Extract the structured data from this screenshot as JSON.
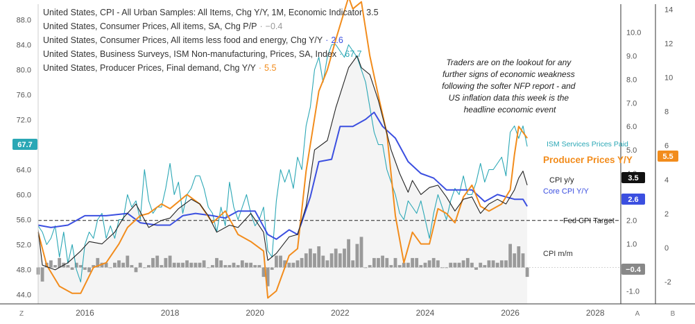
{
  "chart_data": {
    "type": "line",
    "x_ticks": [
      "2016",
      "2018",
      "2020",
      "2022",
      "2024",
      "2026",
      "2028"
    ],
    "axes": {
      "left": {
        "ticks": [
          "44.0",
          "48.0",
          "52.0",
          "56.0",
          "60.0",
          "64.0",
          "68.0",
          "72.0",
          "76.0",
          "80.0",
          "84.0",
          "88.0"
        ],
        "range": [
          42.5,
          90.5
        ]
      },
      "a": {
        "ticks": [
          "-1.0",
          "0.0",
          "1.0",
          "2.0",
          "3.0",
          "4.0",
          "5.0",
          "6.0",
          "7.0",
          "8.0",
          "9.0",
          "10.0"
        ],
        "range": [
          -1.55,
          11.2
        ]
      },
      "b": {
        "ticks": [
          "-2",
          "0",
          "2",
          "4",
          "6",
          "8",
          "10",
          "12",
          "14"
        ],
        "range": [
          -3.3,
          14.3
        ]
      }
    },
    "legend": [
      {
        "id": "cpi_yy",
        "label": "United States, CPI - All Urban Samples: All Items, Chg Y/Y, 1M, Economic Indicator",
        "value": "3.5",
        "value_color": "#333333"
      },
      {
        "id": "cpi_mm",
        "label": "United States, Consumer Prices, All items, SA, Chg P/P",
        "value": "−0.4",
        "value_color": "#999999"
      },
      {
        "id": "core",
        "label": "United States, Consumer Prices, All items less food and energy, Chg Y/Y",
        "value": "2.6",
        "value_color": "#3b4fe0"
      },
      {
        "id": "ism",
        "label": "United States, Business Surveys, ISM Non-manufacturing, Prices, SA, Index",
        "value": "67.7",
        "value_color": "#2aa7b5"
      },
      {
        "id": "ppi",
        "label": "United States, Producer Prices, Final demand, Chg Y/Y",
        "value": "5.5",
        "value_color": "#f28c1c"
      }
    ],
    "annotation": "Traders are on the lookout for any further signs of economic weakness following the softer NFP report - and US inflation data this week is the headline economic event",
    "reference_line": {
      "label": "Fed CPI Target",
      "value": 2.0,
      "axis": "a"
    },
    "series_labels": {
      "ism": "ISM Services Prices Paid",
      "ppi": "Producer Prices Y/Y",
      "cpi_yy": "CPI y/y",
      "core": "Core CPI Y/Y",
      "cpi_mm": "CPI m/m"
    },
    "badges": {
      "left": "67.7",
      "ppi": "5.5",
      "cpi_yy": "3.5",
      "core": "2.6",
      "cpi_mm": "−0.4"
    },
    "corner_labels": {
      "left": "Z",
      "a": "A",
      "b": "B"
    },
    "colors": {
      "cpi_yy": "#222222",
      "cpi_mm": "#9a9a9a",
      "core": "#3b4fe0",
      "ism": "#2aa7b5",
      "ppi": "#f28c1c",
      "badge_left": "#2aa7b5",
      "badge_cpi": "#111111",
      "badge_mm": "#888888"
    },
    "series": [
      {
        "id": "cpi_yy",
        "axis": "a",
        "x": [
          2014.9,
          2015.0,
          2015.3,
          2015.6,
          2015.9,
          2016.1,
          2016.4,
          2016.7,
          2016.9,
          2017.2,
          2017.5,
          2017.8,
          2018.0,
          2018.2,
          2018.5,
          2018.7,
          2018.9,
          2019.1,
          2019.4,
          2019.6,
          2019.9,
          2020.2,
          2020.3,
          2020.5,
          2020.8,
          2021.0,
          2021.2,
          2021.4,
          2021.7,
          2021.9,
          2022.2,
          2022.4,
          2022.5,
          2022.7,
          2022.9,
          2023.2,
          2023.4,
          2023.6,
          2023.7,
          2023.9,
          2024.1,
          2024.3,
          2024.5,
          2024.7,
          2024.9,
          2025.1,
          2025.3,
          2025.5,
          2025.7,
          2025.9,
          2026.1,
          2026.2,
          2026.3,
          2026.4
        ],
        "values": [
          1.6,
          0.1,
          -0.1,
          0.2,
          0.7,
          1.1,
          1.0,
          1.5,
          2.1,
          2.7,
          1.7,
          2.0,
          2.1,
          2.5,
          2.9,
          2.7,
          2.2,
          1.5,
          1.8,
          1.7,
          2.3,
          1.5,
          0.3,
          0.6,
          1.3,
          1.4,
          2.6,
          5.0,
          5.4,
          6.8,
          8.5,
          9.0,
          8.5,
          8.2,
          7.1,
          5.0,
          4.0,
          3.2,
          3.7,
          3.1,
          3.4,
          3.5,
          3.0,
          2.4,
          2.9,
          3.0,
          2.3,
          2.7,
          2.9,
          2.7,
          3.3,
          3.8,
          4.1,
          3.5
        ]
      },
      {
        "id": "core",
        "axis": "a",
        "x": [
          2014.9,
          2015.2,
          2015.6,
          2016.0,
          2016.5,
          2017.0,
          2017.3,
          2017.7,
          2018.0,
          2018.3,
          2018.6,
          2019.0,
          2019.3,
          2019.6,
          2020.0,
          2020.3,
          2020.5,
          2020.8,
          2021.0,
          2021.3,
          2021.5,
          2021.8,
          2022.0,
          2022.3,
          2022.6,
          2022.8,
          2023.0,
          2023.3,
          2023.6,
          2023.9,
          2024.2,
          2024.5,
          2024.8,
          2025.1,
          2025.4,
          2025.7,
          2025.9,
          2026.1,
          2026.3,
          2026.4
        ],
        "values": [
          1.8,
          1.7,
          1.8,
          2.2,
          2.2,
          2.3,
          1.9,
          1.8,
          1.8,
          2.2,
          2.3,
          2.2,
          2.1,
          2.4,
          2.4,
          1.4,
          1.2,
          1.6,
          1.4,
          3.0,
          4.5,
          4.6,
          6.0,
          6.0,
          6.3,
          6.6,
          6.0,
          5.5,
          4.5,
          4.0,
          3.8,
          3.3,
          3.3,
          3.3,
          2.8,
          3.1,
          3.0,
          2.9,
          2.9,
          2.6
        ]
      },
      {
        "id": "ppi",
        "axis": "a",
        "x": [
          2014.9,
          2015.1,
          2015.4,
          2015.7,
          2015.9,
          2016.2,
          2016.5,
          2016.8,
          2017.0,
          2017.3,
          2017.5,
          2017.8,
          2018.0,
          2018.4,
          2018.7,
          2019.0,
          2019.3,
          2019.6,
          2019.9,
          2020.2,
          2020.3,
          2020.5,
          2020.8,
          2021.0,
          2021.2,
          2021.5,
          2021.7,
          2021.9,
          2022.2,
          2022.3,
          2022.5,
          2022.7,
          2022.9,
          2023.1,
          2023.3,
          2023.5,
          2023.7,
          2023.9,
          2024.1,
          2024.3,
          2024.5,
          2024.7,
          2024.9,
          2025.1,
          2025.3,
          2025.5,
          2025.8,
          2026.0,
          2026.1,
          2026.2,
          2026.4
        ],
        "values": [
          1.5,
          0.1,
          -0.8,
          -1.1,
          -1.1,
          0.0,
          0.2,
          1.0,
          1.7,
          2.2,
          2.3,
          2.7,
          2.5,
          3.1,
          2.7,
          1.9,
          2.4,
          1.4,
          1.1,
          0.7,
          -1.3,
          -1.0,
          0.5,
          0.8,
          4.1,
          7.5,
          8.4,
          9.7,
          11.5,
          11.0,
          11.3,
          9.0,
          7.3,
          5.7,
          2.2,
          0.2,
          1.5,
          1.0,
          1.0,
          2.5,
          2.3,
          1.9,
          3.0,
          3.5,
          2.6,
          2.4,
          2.7,
          3.3,
          4.8,
          6.0,
          5.5
        ]
      },
      {
        "id": "ism",
        "axis": "left",
        "x": [
          2014.9,
          2015.0,
          2015.1,
          2015.2,
          2015.3,
          2015.4,
          2015.5,
          2015.6,
          2015.7,
          2015.8,
          2015.9,
          2016.0,
          2016.1,
          2016.2,
          2016.3,
          2016.4,
          2016.5,
          2016.6,
          2016.7,
          2016.8,
          2016.9,
          2017.0,
          2017.1,
          2017.2,
          2017.3,
          2017.4,
          2017.5,
          2017.6,
          2017.7,
          2017.8,
          2017.9,
          2018.0,
          2018.1,
          2018.2,
          2018.3,
          2018.4,
          2018.5,
          2018.6,
          2018.7,
          2018.8,
          2018.9,
          2019.0,
          2019.1,
          2019.2,
          2019.3,
          2019.4,
          2019.5,
          2019.6,
          2019.7,
          2019.8,
          2019.9,
          2020.0,
          2020.1,
          2020.2,
          2020.3,
          2020.4,
          2020.5,
          2020.6,
          2020.7,
          2020.8,
          2020.9,
          2021.0,
          2021.1,
          2021.2,
          2021.3,
          2021.4,
          2021.5,
          2021.6,
          2021.7,
          2021.8,
          2021.9,
          2022.0,
          2022.1,
          2022.2,
          2022.3,
          2022.4,
          2022.5,
          2022.6,
          2022.7,
          2022.8,
          2022.9,
          2023.0,
          2023.1,
          2023.2,
          2023.3,
          2023.4,
          2023.5,
          2023.6,
          2023.7,
          2023.8,
          2023.9,
          2024.0,
          2024.1,
          2024.2,
          2024.3,
          2024.4,
          2024.5,
          2024.6,
          2024.7,
          2024.8,
          2024.9,
          2025.0,
          2025.1,
          2025.2,
          2025.3,
          2025.4,
          2025.5,
          2025.6,
          2025.7,
          2025.8,
          2025.9,
          2026.0,
          2026.1,
          2026.2,
          2026.3,
          2026.4
        ],
        "values": [
          55,
          54,
          52,
          53,
          55,
          50,
          54,
          49,
          52,
          48,
          46,
          52,
          54,
          53,
          56,
          57,
          53,
          55,
          53,
          56,
          56,
          60,
          58,
          59,
          56,
          64,
          59,
          57,
          58,
          58,
          61,
          65,
          60,
          62,
          57,
          60,
          61,
          63,
          63,
          61,
          58,
          57,
          54,
          58,
          55,
          62,
          58,
          56,
          58,
          60,
          57,
          55,
          56,
          58,
          51,
          50,
          59,
          64,
          62,
          64,
          61,
          66,
          64,
          71,
          74,
          80,
          82,
          78,
          82,
          84,
          84,
          83,
          82,
          84,
          83,
          82,
          80,
          78,
          74,
          70,
          68,
          68,
          64,
          62,
          60,
          57,
          56,
          59,
          58,
          57,
          59,
          56,
          53,
          57,
          60,
          58,
          56,
          59,
          61,
          60,
          63,
          60,
          60,
          62,
          65,
          62,
          64,
          64,
          65,
          66,
          63,
          70,
          71,
          69,
          71,
          67.7
        ]
      },
      {
        "id": "cpi_mm",
        "type": "bar",
        "axis": "a",
        "x": [
          2014.9,
          2015.0,
          2015.1,
          2015.2,
          2015.3,
          2015.4,
          2015.5,
          2015.6,
          2015.7,
          2015.8,
          2015.9,
          2016.0,
          2016.1,
          2016.2,
          2016.3,
          2016.4,
          2016.5,
          2016.6,
          2016.7,
          2016.8,
          2016.9,
          2017.0,
          2017.1,
          2017.2,
          2017.3,
          2017.4,
          2017.5,
          2017.6,
          2017.7,
          2017.8,
          2017.9,
          2018.0,
          2018.1,
          2018.2,
          2018.3,
          2018.4,
          2018.5,
          2018.6,
          2018.7,
          2018.8,
          2018.9,
          2019.0,
          2019.1,
          2019.2,
          2019.3,
          2019.4,
          2019.5,
          2019.6,
          2019.7,
          2019.8,
          2019.9,
          2020.0,
          2020.1,
          2020.2,
          2020.3,
          2020.4,
          2020.5,
          2020.6,
          2020.7,
          2020.8,
          2020.9,
          2021.0,
          2021.1,
          2021.2,
          2021.3,
          2021.4,
          2021.5,
          2021.6,
          2021.7,
          2021.8,
          2021.9,
          2022.0,
          2022.1,
          2022.2,
          2022.3,
          2022.4,
          2022.5,
          2022.6,
          2022.7,
          2022.8,
          2022.9,
          2023.0,
          2023.1,
          2023.2,
          2023.3,
          2023.4,
          2023.5,
          2023.6,
          2023.7,
          2023.8,
          2023.9,
          2024.0,
          2024.1,
          2024.2,
          2024.3,
          2024.4,
          2024.5,
          2024.6,
          2024.7,
          2024.8,
          2024.9,
          2025.0,
          2025.1,
          2025.2,
          2025.3,
          2025.4,
          2025.5,
          2025.6,
          2025.7,
          2025.8,
          2025.9,
          2026.0,
          2026.1,
          2026.2,
          2026.3,
          2026.4
        ],
        "values": [
          -0.3,
          -0.6,
          0.2,
          0.3,
          0.1,
          0.4,
          0.2,
          0.1,
          -0.1,
          0.2,
          0.1,
          -0.1,
          -0.2,
          0.1,
          0.4,
          0.2,
          0.2,
          0.0,
          0.2,
          0.3,
          0.2,
          0.5,
          0.1,
          -0.2,
          0.2,
          0.0,
          0.1,
          0.4,
          0.5,
          0.1,
          0.4,
          0.5,
          0.2,
          0.2,
          0.2,
          0.3,
          0.2,
          0.2,
          0.2,
          0.3,
          0.0,
          0.1,
          0.4,
          0.3,
          0.1,
          0.1,
          0.2,
          0.1,
          0.3,
          0.2,
          0.2,
          0.1,
          0.1,
          -0.4,
          -0.8,
          -0.1,
          0.5,
          0.5,
          0.3,
          0.2,
          0.2,
          0.3,
          0.4,
          0.6,
          0.8,
          0.6,
          0.9,
          0.5,
          0.3,
          0.6,
          0.8,
          0.6,
          0.8,
          1.2,
          0.3,
          1.0,
          1.3,
          0.0,
          0.1,
          0.4,
          0.4,
          0.5,
          0.4,
          0.1,
          0.4,
          0.1,
          0.2,
          0.2,
          0.4,
          0.4,
          0.1,
          0.2,
          0.3,
          0.4,
          0.3,
          0.0,
          0.0,
          0.2,
          0.2,
          0.2,
          0.3,
          0.4,
          0.2,
          -0.1,
          0.2,
          0.1,
          0.3,
          0.3,
          0.2,
          0.3,
          0.3,
          1.0,
          0.6,
          0.9,
          0.6,
          -0.4
        ]
      }
    ]
  }
}
